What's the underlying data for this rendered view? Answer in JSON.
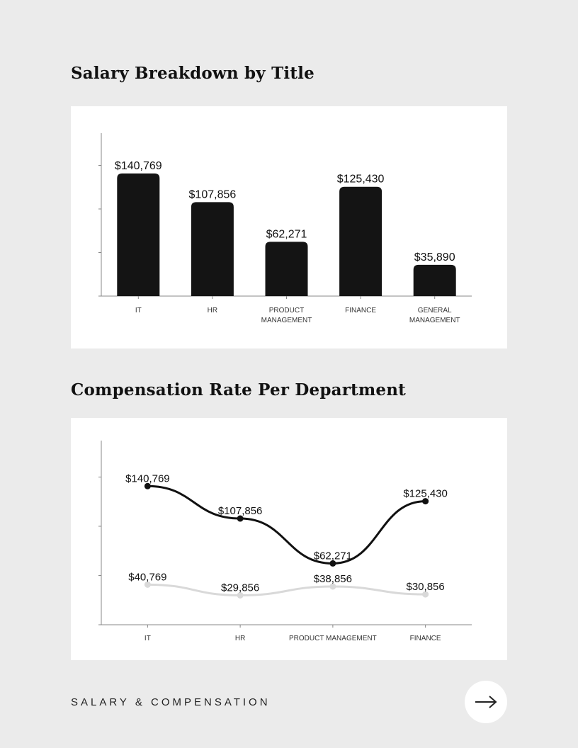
{
  "chart_data": [
    {
      "type": "bar",
      "title": "Salary Breakdown by Title",
      "categories": [
        "IT",
        "HR",
        "PRODUCT MANAGEMENT",
        "FINANCE",
        "GENERAL MANAGEMENT"
      ],
      "values": [
        140769,
        107856,
        62271,
        125430,
        35890
      ],
      "data_labels": [
        "$140,769",
        "$107,856",
        "$62,271",
        "$125,430",
        "$35,890"
      ],
      "ylim": [
        0,
        187000
      ],
      "yticks": [
        50000,
        100000,
        150000
      ],
      "grid": false,
      "bar_color": "#141414"
    },
    {
      "type": "line",
      "title": "Compensation Rate Per Department",
      "categories": [
        "IT",
        "HR",
        "PRODUCT MANAGEMENT",
        "FINANCE"
      ],
      "series": [
        {
          "values": [
            140769,
            107856,
            62271,
            125430
          ],
          "data_labels": [
            "$140,769",
            "$107,856",
            "$62,271",
            "$125,430"
          ],
          "color": "#111111"
        },
        {
          "values": [
            40769,
            29856,
            38856,
            30856
          ],
          "data_labels": [
            "$40,769",
            "$29,856",
            "$38,856",
            "$30,856"
          ],
          "color": "#d9d9d9"
        }
      ],
      "ylim": [
        0,
        187000
      ],
      "yticks": [
        50000,
        100000,
        150000
      ],
      "grid": false,
      "smooth": true
    }
  ],
  "footer": {
    "label": "SALARY & COMPENSATION",
    "next_icon": "arrow-right-icon"
  }
}
